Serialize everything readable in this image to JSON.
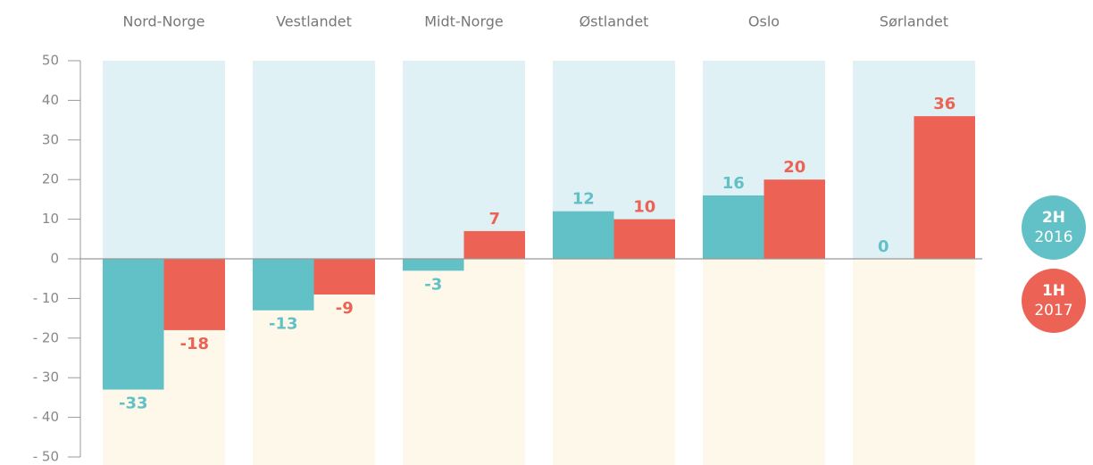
{
  "chart_data": {
    "type": "bar",
    "categories": [
      "Nord-Norge",
      "Vestlandet",
      "Midt-Norge",
      "Østlandet",
      "Oslo",
      "Sørlandet"
    ],
    "series": [
      {
        "name": "2H 2016",
        "color": "#62c1c7",
        "values": [
          -33,
          -13,
          -3,
          12,
          16,
          0
        ]
      },
      {
        "name": "1H 2017",
        "color": "#ec6356",
        "values": [
          -18,
          -9,
          7,
          10,
          20,
          36
        ]
      }
    ],
    "ylim": [
      -50,
      50
    ],
    "yticks": [
      {
        "value": -50,
        "label": "- 50"
      },
      {
        "value": -40,
        "label": "- 40"
      },
      {
        "value": -30,
        "label": "- 30"
      },
      {
        "value": -20,
        "label": "- 20"
      },
      {
        "value": -10,
        "label": "- 10"
      },
      0,
      10,
      20,
      30,
      40,
      50
    ]
  }
}
